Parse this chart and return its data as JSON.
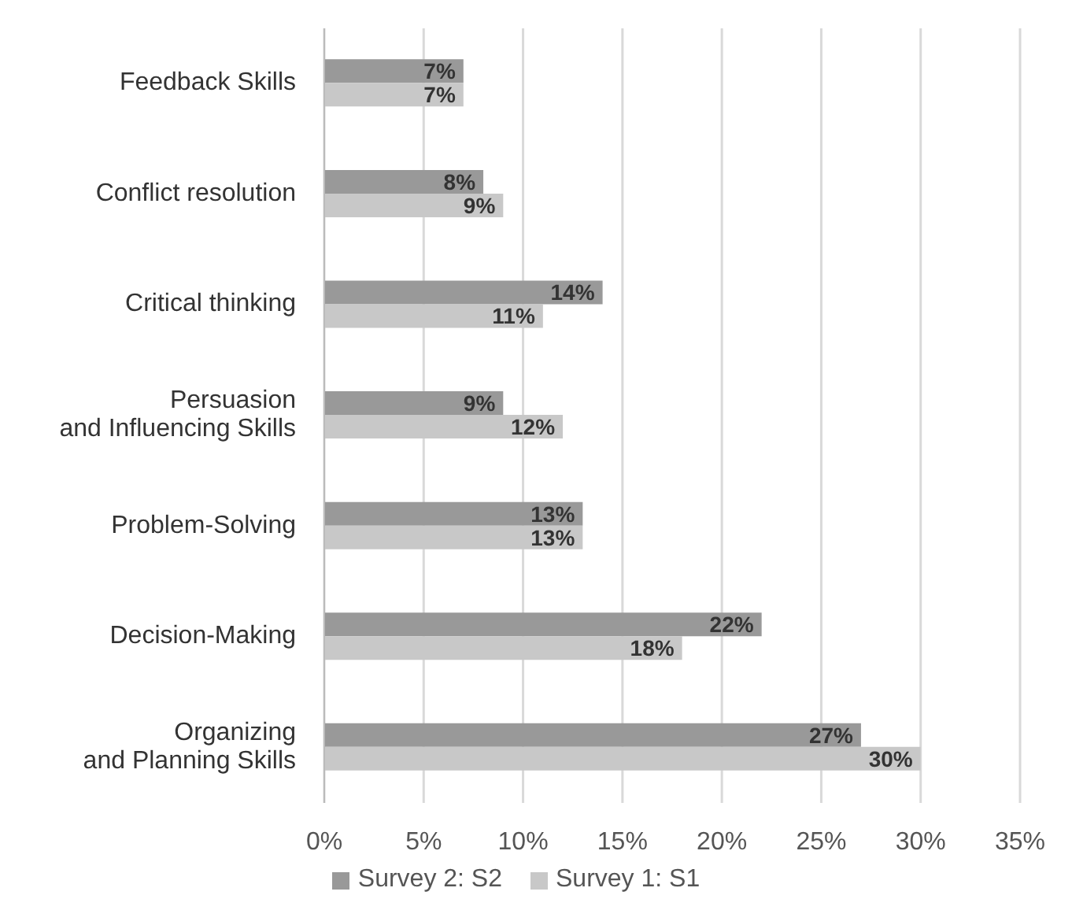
{
  "chart_data": {
    "type": "bar",
    "orientation": "horizontal",
    "categories": [
      "Feedback Skills",
      "Conflict resolution",
      "Critical thinking",
      "Persuasion\nand Influencing Skills",
      "Problem-Solving",
      "Decision-Making",
      "Organizing\nand Planning Skills"
    ],
    "series": [
      {
        "name": "Survey 2: S2",
        "color": "#999999",
        "values": [
          7,
          8,
          14,
          9,
          13,
          22,
          27
        ],
        "value_labels": [
          "7%",
          "8%",
          "14%",
          "9%",
          "13%",
          "22%",
          "27%"
        ]
      },
      {
        "name": "Survey 1: S1",
        "color": "#c8c8c8",
        "values": [
          7,
          9,
          11,
          12,
          13,
          18,
          30
        ],
        "value_labels": [
          "7%",
          "9%",
          "11%",
          "12%",
          "13%",
          "18%",
          "30%"
        ]
      }
    ],
    "xlim": [
      0,
      35
    ],
    "xticks": [
      {
        "value": 0,
        "label": "0%"
      },
      {
        "value": 5,
        "label": "5%"
      },
      {
        "value": 10,
        "label": "10%"
      },
      {
        "value": 15,
        "label": "15%"
      },
      {
        "value": 20,
        "label": "20%"
      },
      {
        "value": 25,
        "label": "25%"
      },
      {
        "value": 30,
        "label": "30%"
      },
      {
        "value": 35,
        "label": "35%"
      }
    ],
    "grid": "x",
    "legend": "bottom"
  }
}
